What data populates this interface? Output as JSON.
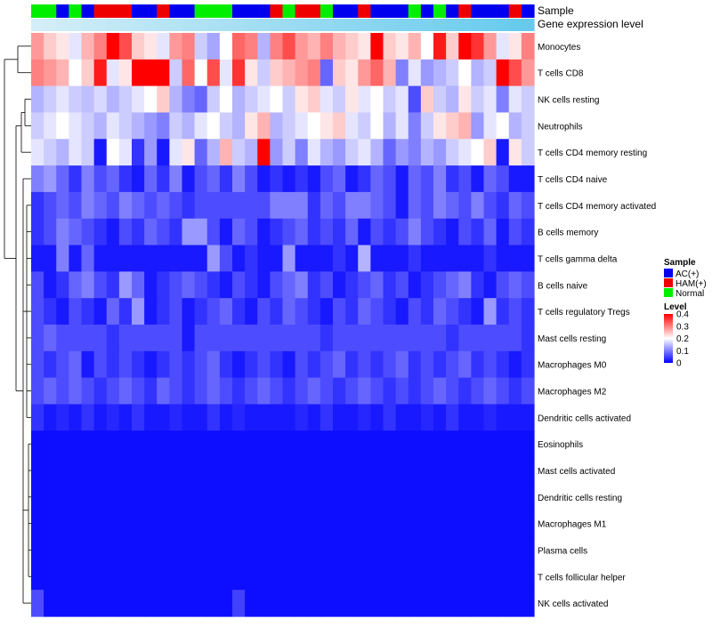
{
  "chart_data": {
    "type": "heatmap",
    "annotation_labels": [
      "Sample",
      "Gene expression level"
    ],
    "sample_groups": [
      "N",
      "N",
      "A",
      "N",
      "A",
      "H",
      "H",
      "H",
      "A",
      "A",
      "H",
      "A",
      "A",
      "N",
      "N",
      "N",
      "A",
      "A",
      "A",
      "H",
      "N",
      "H",
      "H",
      "N",
      "A",
      "A",
      "H",
      "A",
      "A",
      "A",
      "N",
      "A",
      "N",
      "A",
      "H",
      "A",
      "A",
      "A",
      "H",
      "A"
    ],
    "gene_expression_level": [
      0.1,
      0.12,
      0.14,
      0.16,
      0.18,
      0.2,
      0.22,
      0.24,
      0.26,
      0.28,
      0.3,
      0.32,
      0.34,
      0.36,
      0.38,
      0.4,
      0.42,
      0.44,
      0.46,
      0.48,
      0.5,
      0.52,
      0.54,
      0.56,
      0.58,
      0.6,
      0.62,
      0.64,
      0.66,
      0.68,
      0.7,
      0.72,
      0.74,
      0.76,
      0.78,
      0.8,
      0.82,
      0.84,
      0.86,
      0.88
    ],
    "rows": [
      "Monocytes",
      "T cells CD8",
      "NK cells resting",
      "Neutrophils",
      "T cells CD4 memory resting",
      "T cells CD4 naive",
      "T cells CD4 memory activated",
      "B cells memory",
      "T cells gamma delta",
      "B cells naive",
      "T cells regulatory  Tregs",
      "Mast cells resting",
      "Macrophages M0",
      "Macrophages M2",
      "Dendritic cells activated",
      "Eosinophils",
      "Mast cells activated",
      "Dendritic cells resting",
      "Macrophages M1",
      "Plasma cells",
      "T cells follicular helper",
      "NK cells activated"
    ],
    "values": [
      [
        0.28,
        0.24,
        0.22,
        0.18,
        0.26,
        0.3,
        0.4,
        0.34,
        0.24,
        0.22,
        0.18,
        0.28,
        0.3,
        0.16,
        0.13,
        0.2,
        0.32,
        0.3,
        0.14,
        0.3,
        0.34,
        0.28,
        0.26,
        0.3,
        0.26,
        0.24,
        0.22,
        0.4,
        0.24,
        0.22,
        0.26,
        0.2,
        0.38,
        0.24,
        0.4,
        0.36,
        0.28,
        0.18,
        0.22,
        0.3
      ],
      [
        0.3,
        0.28,
        0.26,
        0.2,
        0.24,
        0.38,
        0.18,
        0.22,
        0.4,
        0.42,
        0.42,
        0.16,
        0.32,
        0.2,
        0.34,
        0.18,
        0.36,
        0.22,
        0.16,
        0.24,
        0.26,
        0.28,
        0.3,
        0.08,
        0.24,
        0.22,
        0.28,
        0.32,
        0.26,
        0.1,
        0.18,
        0.12,
        0.14,
        0.16,
        0.2,
        0.14,
        0.16,
        0.4,
        0.34,
        0.28
      ],
      [
        0.14,
        0.16,
        0.18,
        0.16,
        0.15,
        0.17,
        0.14,
        0.16,
        0.18,
        0.2,
        0.24,
        0.14,
        0.1,
        0.08,
        0.16,
        0.2,
        0.14,
        0.16,
        0.18,
        0.2,
        0.16,
        0.22,
        0.24,
        0.18,
        0.16,
        0.22,
        0.18,
        0.2,
        0.16,
        0.18,
        0.06,
        0.24,
        0.16,
        0.14,
        0.22,
        0.16,
        0.18,
        0.1,
        0.18,
        0.16
      ],
      [
        0.16,
        0.18,
        0.2,
        0.18,
        0.16,
        0.14,
        0.18,
        0.16,
        0.14,
        0.12,
        0.1,
        0.16,
        0.14,
        0.18,
        0.2,
        0.16,
        0.14,
        0.22,
        0.26,
        0.14,
        0.16,
        0.18,
        0.2,
        0.22,
        0.24,
        0.18,
        0.16,
        0.2,
        0.14,
        0.18,
        0.1,
        0.16,
        0.22,
        0.24,
        0.26,
        0.12,
        0.18,
        0.2,
        0.14,
        0.16
      ],
      [
        0.18,
        0.16,
        0.14,
        0.18,
        0.16,
        0.02,
        0.2,
        0.18,
        0.04,
        0.12,
        0.02,
        0.18,
        0.22,
        0.08,
        0.14,
        0.26,
        0.16,
        0.14,
        0.44,
        0.12,
        0.16,
        0.1,
        0.18,
        0.14,
        0.12,
        0.16,
        0.18,
        0.14,
        0.08,
        0.12,
        0.1,
        0.14,
        0.12,
        0.16,
        0.18,
        0.2,
        0.24,
        0.02,
        0.22,
        0.16
      ],
      [
        0.1,
        0.12,
        0.08,
        0.04,
        0.1,
        0.06,
        0.08,
        0.04,
        0.02,
        0.08,
        0.04,
        0.1,
        0.02,
        0.06,
        0.08,
        0.04,
        0.1,
        0.06,
        0.02,
        0.04,
        0.02,
        0.04,
        0.02,
        0.06,
        0.08,
        0.02,
        0.04,
        0.08,
        0.06,
        0.02,
        0.08,
        0.06,
        0.1,
        0.04,
        0.06,
        0.02,
        0.08,
        0.06,
        0.02,
        0.02
      ],
      [
        0.04,
        0.06,
        0.08,
        0.06,
        0.1,
        0.08,
        0.06,
        0.1,
        0.08,
        0.06,
        0.08,
        0.06,
        0.04,
        0.06,
        0.06,
        0.06,
        0.06,
        0.06,
        0.06,
        0.1,
        0.1,
        0.1,
        0.04,
        0.08,
        0.06,
        0.1,
        0.1,
        0.08,
        0.06,
        0.02,
        0.08,
        0.06,
        0.1,
        0.08,
        0.06,
        0.1,
        0.06,
        0.04,
        0.08,
        0.06
      ],
      [
        0.04,
        0.06,
        0.1,
        0.08,
        0.06,
        0.04,
        0.02,
        0.06,
        0.04,
        0.08,
        0.06,
        0.04,
        0.12,
        0.12,
        0.06,
        0.02,
        0.08,
        0.06,
        0.02,
        0.04,
        0.06,
        0.08,
        0.04,
        0.06,
        0.04,
        0.08,
        0.02,
        0.06,
        0.04,
        0.06,
        0.1,
        0.06,
        0.04,
        0.02,
        0.06,
        0.04,
        0.08,
        0.02,
        0.06,
        0.04
      ],
      [
        0.02,
        0.02,
        0.1,
        0.02,
        0.08,
        0.02,
        0.02,
        0.02,
        0.02,
        0.02,
        0.02,
        0.02,
        0.02,
        0.02,
        0.12,
        0.06,
        0.02,
        0.04,
        0.02,
        0.02,
        0.12,
        0.02,
        0.02,
        0.02,
        0.04,
        0.02,
        0.14,
        0.02,
        0.02,
        0.02,
        0.04,
        0.02,
        0.02,
        0.02,
        0.02,
        0.02,
        0.04,
        0.02,
        0.02,
        0.02
      ],
      [
        0.06,
        0.02,
        0.04,
        0.08,
        0.1,
        0.06,
        0.04,
        0.12,
        0.08,
        0.02,
        0.04,
        0.06,
        0.08,
        0.06,
        0.04,
        0.02,
        0.06,
        0.04,
        0.02,
        0.06,
        0.08,
        0.1,
        0.04,
        0.06,
        0.02,
        0.04,
        0.06,
        0.08,
        0.04,
        0.06,
        0.02,
        0.04,
        0.06,
        0.08,
        0.1,
        0.04,
        0.02,
        0.06,
        0.08,
        0.06
      ],
      [
        0.06,
        0.04,
        0.02,
        0.06,
        0.04,
        0.02,
        0.08,
        0.04,
        0.12,
        0.02,
        0.04,
        0.06,
        0.02,
        0.04,
        0.06,
        0.08,
        0.04,
        0.02,
        0.06,
        0.04,
        0.08,
        0.06,
        0.04,
        0.02,
        0.06,
        0.04,
        0.08,
        0.06,
        0.04,
        0.02,
        0.06,
        0.04,
        0.08,
        0.06,
        0.04,
        0.02,
        0.12,
        0.04,
        0.06,
        0.04
      ],
      [
        0.06,
        0.08,
        0.06,
        0.06,
        0.06,
        0.06,
        0.04,
        0.06,
        0.06,
        0.06,
        0.06,
        0.06,
        0.02,
        0.06,
        0.06,
        0.06,
        0.06,
        0.06,
        0.06,
        0.06,
        0.06,
        0.06,
        0.06,
        0.04,
        0.06,
        0.06,
        0.06,
        0.06,
        0.06,
        0.06,
        0.06,
        0.06,
        0.06,
        0.04,
        0.06,
        0.06,
        0.06,
        0.06,
        0.06,
        0.04
      ],
      [
        0.06,
        0.04,
        0.06,
        0.08,
        0.02,
        0.06,
        0.04,
        0.06,
        0.04,
        0.02,
        0.04,
        0.06,
        0.04,
        0.06,
        0.08,
        0.04,
        0.02,
        0.04,
        0.06,
        0.04,
        0.02,
        0.06,
        0.04,
        0.06,
        0.08,
        0.04,
        0.06,
        0.04,
        0.06,
        0.08,
        0.04,
        0.06,
        0.04,
        0.06,
        0.08,
        0.04,
        0.06,
        0.04,
        0.02,
        0.04
      ],
      [
        0.06,
        0.08,
        0.06,
        0.08,
        0.06,
        0.04,
        0.06,
        0.08,
        0.06,
        0.04,
        0.08,
        0.06,
        0.04,
        0.06,
        0.08,
        0.06,
        0.04,
        0.06,
        0.08,
        0.06,
        0.04,
        0.06,
        0.08,
        0.06,
        0.04,
        0.06,
        0.08,
        0.06,
        0.04,
        0.06,
        0.04,
        0.06,
        0.08,
        0.06,
        0.04,
        0.06,
        0.08,
        0.06,
        0.04,
        0.06
      ],
      [
        0.04,
        0.02,
        0.03,
        0.02,
        0.04,
        0.02,
        0.03,
        0.02,
        0.04,
        0.02,
        0.02,
        0.03,
        0.02,
        0.02,
        0.04,
        0.02,
        0.03,
        0.02,
        0.02,
        0.02,
        0.02,
        0.03,
        0.02,
        0.04,
        0.02,
        0.02,
        0.03,
        0.02,
        0.04,
        0.02,
        0.02,
        0.03,
        0.02,
        0.04,
        0.02,
        0.02,
        0.03,
        0.02,
        0.02,
        0.02
      ],
      [
        0.01,
        0.01,
        0.01,
        0.01,
        0.01,
        0.01,
        0.01,
        0.01,
        0.01,
        0.01,
        0.01,
        0.01,
        0.01,
        0.01,
        0.01,
        0.01,
        0.01,
        0.01,
        0.01,
        0.01,
        0.01,
        0.01,
        0.01,
        0.01,
        0.01,
        0.01,
        0.01,
        0.01,
        0.01,
        0.01,
        0.01,
        0.01,
        0.01,
        0.01,
        0.01,
        0.01,
        0.01,
        0.01,
        0.01,
        0.01
      ],
      [
        0.01,
        0.01,
        0.01,
        0.01,
        0.01,
        0.01,
        0.01,
        0.01,
        0.01,
        0.01,
        0.01,
        0.01,
        0.01,
        0.01,
        0.01,
        0.01,
        0.01,
        0.01,
        0.01,
        0.01,
        0.01,
        0.01,
        0.01,
        0.01,
        0.01,
        0.01,
        0.01,
        0.01,
        0.01,
        0.01,
        0.01,
        0.01,
        0.01,
        0.01,
        0.01,
        0.01,
        0.01,
        0.01,
        0.01,
        0.01
      ],
      [
        0.01,
        0.01,
        0.01,
        0.01,
        0.01,
        0.01,
        0.01,
        0.01,
        0.01,
        0.01,
        0.01,
        0.01,
        0.01,
        0.01,
        0.01,
        0.01,
        0.01,
        0.01,
        0.01,
        0.01,
        0.01,
        0.01,
        0.01,
        0.01,
        0.01,
        0.01,
        0.01,
        0.01,
        0.01,
        0.01,
        0.01,
        0.01,
        0.01,
        0.01,
        0.01,
        0.01,
        0.01,
        0.01,
        0.01,
        0.01
      ],
      [
        0.01,
        0.01,
        0.01,
        0.01,
        0.01,
        0.01,
        0.01,
        0.01,
        0.01,
        0.01,
        0.01,
        0.01,
        0.01,
        0.01,
        0.01,
        0.01,
        0.01,
        0.01,
        0.01,
        0.01,
        0.01,
        0.01,
        0.01,
        0.01,
        0.01,
        0.01,
        0.01,
        0.01,
        0.01,
        0.01,
        0.01,
        0.01,
        0.01,
        0.01,
        0.01,
        0.01,
        0.01,
        0.01,
        0.01,
        0.01
      ],
      [
        0.01,
        0.01,
        0.01,
        0.01,
        0.01,
        0.01,
        0.01,
        0.01,
        0.01,
        0.01,
        0.01,
        0.01,
        0.01,
        0.01,
        0.01,
        0.01,
        0.01,
        0.01,
        0.01,
        0.01,
        0.01,
        0.01,
        0.01,
        0.01,
        0.01,
        0.01,
        0.01,
        0.01,
        0.01,
        0.01,
        0.01,
        0.01,
        0.01,
        0.01,
        0.01,
        0.01,
        0.01,
        0.01,
        0.01,
        0.01
      ],
      [
        0.01,
        0.01,
        0.01,
        0.01,
        0.01,
        0.01,
        0.01,
        0.01,
        0.01,
        0.01,
        0.01,
        0.01,
        0.01,
        0.01,
        0.01,
        0.01,
        0.01,
        0.01,
        0.01,
        0.01,
        0.01,
        0.01,
        0.01,
        0.01,
        0.01,
        0.01,
        0.01,
        0.01,
        0.01,
        0.01,
        0.01,
        0.01,
        0.01,
        0.01,
        0.01,
        0.01,
        0.01,
        0.01,
        0.01,
        0.01
      ],
      [
        0.06,
        0.01,
        0.01,
        0.01,
        0.01,
        0.01,
        0.01,
        0.01,
        0.01,
        0.01,
        0.01,
        0.01,
        0.01,
        0.01,
        0.01,
        0.01,
        0.05,
        0.01,
        0.01,
        0.01,
        0.01,
        0.01,
        0.01,
        0.01,
        0.01,
        0.01,
        0.01,
        0.01,
        0.01,
        0.01,
        0.01,
        0.01,
        0.01,
        0.01,
        0.01,
        0.01,
        0.01,
        0.01,
        0.01,
        0.01
      ]
    ],
    "legend": {
      "sample_title": "Sample",
      "sample_items": [
        {
          "key": "A",
          "label": "AC(+)",
          "color": "#0000ee"
        },
        {
          "key": "H",
          "label": "HAM(+)",
          "color": "#ee0000"
        },
        {
          "key": "N",
          "label": "Normal",
          "color": "#00ee00"
        }
      ],
      "level_title": "Level",
      "level_ticks": [
        "0.4",
        "0.3",
        "0.2",
        "0.1",
        "0"
      ],
      "range": [
        0,
        0.4
      ]
    },
    "colors": {
      "low": "#0000ff",
      "mid": "#ffffff",
      "high": "#ff0000",
      "expr_low": "#e1f2fa",
      "expr_high": "#56c5ea"
    }
  }
}
